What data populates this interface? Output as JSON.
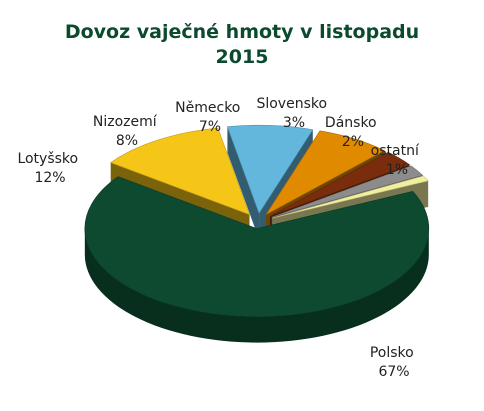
{
  "chart_data": {
    "type": "pie",
    "title_line1": "Dovoz vaječné hmoty v listopadu",
    "title_line2": "2015",
    "slices": [
      {
        "label": "Polsko",
        "value": 67,
        "value_label": "67%",
        "color": "#0d4a2f"
      },
      {
        "label": "Lotyšsko",
        "value": 12,
        "value_label": "12%",
        "color": "#f5c518"
      },
      {
        "label": "Nizozemí",
        "value": 8,
        "value_label": "8%",
        "color": "#63b7dd"
      },
      {
        "label": "Německo",
        "value": 7,
        "value_label": "7%",
        "color": "#e08a00"
      },
      {
        "label": "Slovensko",
        "value": 3,
        "value_label": "3%",
        "color": "#7a2d0d"
      },
      {
        "label": "Dánsko",
        "value": 2,
        "value_label": "2%",
        "color": "#8c8c8c"
      },
      {
        "label": "ostatní",
        "value": 1,
        "value_label": "1%",
        "color": "#f1ee9e"
      }
    ]
  }
}
